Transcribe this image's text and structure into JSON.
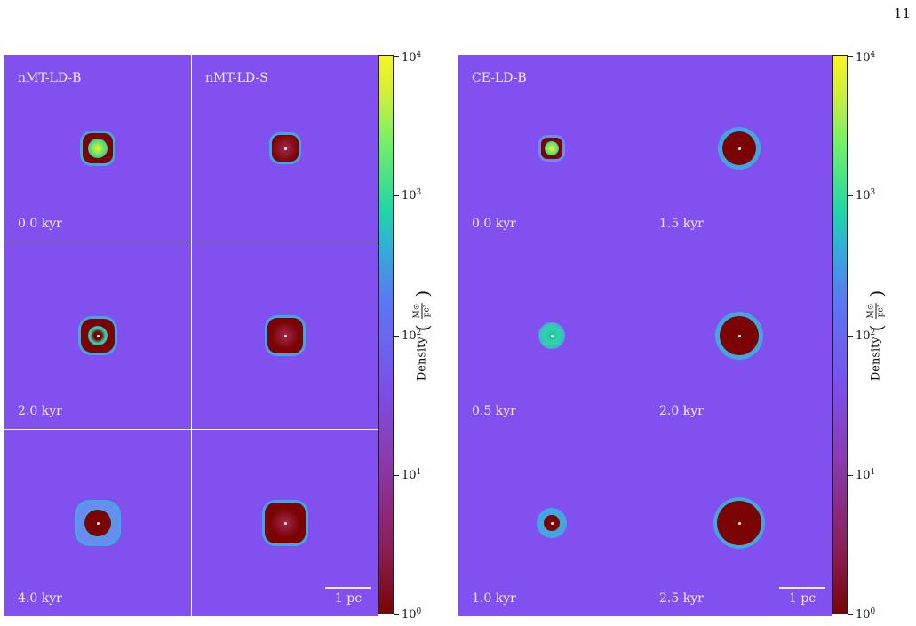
{
  "page_number": "11",
  "colorbar": {
    "label": "Density",
    "unit_numerator": "M⊙",
    "unit_denominator": "pc³",
    "scale": "log",
    "range": [
      1,
      10000
    ],
    "ticks": [
      {
        "base": "10",
        "exp": "0"
      },
      {
        "base": "10",
        "exp": "1"
      },
      {
        "base": "10",
        "exp": "2"
      },
      {
        "base": "10",
        "exp": "3"
      },
      {
        "base": "10",
        "exp": "4"
      }
    ]
  },
  "colors": {
    "background": "#8250ee",
    "core": "#7a0403",
    "shell": "#44a6e0"
  },
  "left_figure": {
    "column_titles": [
      "nMT-LD-B",
      "nMT-LD-S"
    ],
    "row_times": [
      "0.0 kyr",
      "2.0 kyr",
      "4.0 kyr"
    ],
    "scalebar": "1 pc"
  },
  "right_figure": {
    "title": "CE-LD-B",
    "times": [
      "0.0 kyr",
      "1.5 kyr",
      "0.5 kyr",
      "2.0 kyr",
      "1.0 kyr",
      "2.5 kyr"
    ],
    "scalebar": "1 pc"
  }
}
